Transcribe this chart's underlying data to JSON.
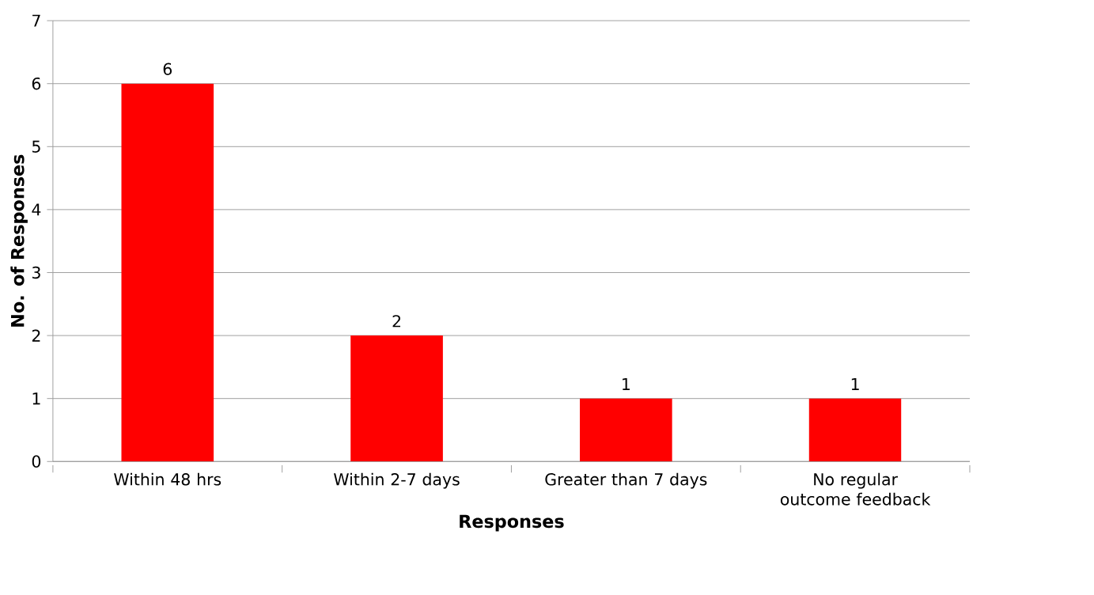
{
  "chart_data": {
    "type": "bar",
    "xlabel": "Responses",
    "ylabel": "No. of Responses",
    "categories": [
      "Within 48 hrs",
      "Within 2-7 days",
      "Greater than 7 days",
      "No regular outcome feedback"
    ],
    "values": [
      6,
      2,
      1,
      1
    ],
    "color": "#ff0000",
    "ylim": [
      0,
      7
    ],
    "yticks": [
      0,
      1,
      2,
      3,
      4,
      5,
      6,
      7
    ],
    "grid": "y",
    "data_labels": true
  }
}
